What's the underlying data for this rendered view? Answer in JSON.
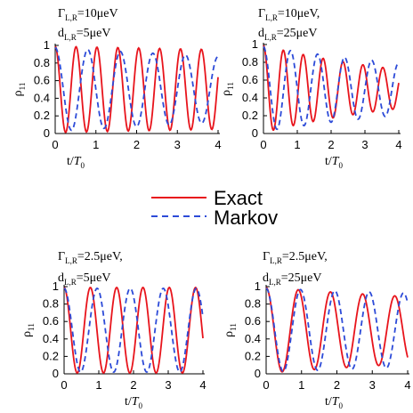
{
  "chart_data": [
    {
      "type": "line",
      "annotation": [
        "Γ",
        "L,R",
        "=10μeV",
        "d",
        "L,R",
        "=5μeV"
      ],
      "xlabel": "t/T",
      "xlabel_sub": "0",
      "ylabel": "ρ",
      "ylabel_sub": "11",
      "xlim": [
        0,
        4
      ],
      "ylim": [
        0,
        1
      ],
      "xticks": [
        "0",
        "1",
        "2",
        "3",
        "4"
      ],
      "yticks": [
        "0",
        "0.2",
        "0.4",
        "0.6",
        "0.8",
        "1"
      ],
      "series": [
        {
          "name": "Exact",
          "color": "#e8141c",
          "dash": "solid",
          "freq": 1.95,
          "decay": 0.02,
          "amp": 0.98
        },
        {
          "name": "Markov",
          "color": "#2d4bd8",
          "dash": "dashed",
          "freq": 1.25,
          "decay": 0.06,
          "amp": 0.95
        }
      ]
    },
    {
      "type": "line",
      "annotation": [
        "Γ",
        "L,R",
        "=10μeV,",
        "d",
        "L,R",
        "=25μeV"
      ],
      "xlabel": "t/T",
      "xlabel_sub": "0",
      "ylabel": "ρ",
      "ylabel_sub": "11",
      "xlim": [
        0,
        4
      ],
      "ylim": [
        0,
        1
      ],
      "xticks": [
        "0",
        "1",
        "2",
        "3",
        "4"
      ],
      "yticks": [
        "0",
        "0.2",
        "0.4",
        "0.6",
        "0.8",
        "1"
      ],
      "series": [
        {
          "name": "Exact",
          "color": "#e8141c",
          "dash": "solid",
          "freq": 1.7,
          "decay": 0.2,
          "amp": 0.98
        },
        {
          "name": "Markov",
          "color": "#2d4bd8",
          "dash": "dashed",
          "freq": 1.25,
          "decay": 0.12,
          "amp": 0.95
        }
      ]
    },
    {
      "type": "line",
      "annotation": [
        "Γ",
        "L,R",
        "=2.5μeV,",
        "d",
        "L,R",
        "=5μeV"
      ],
      "xlabel": "t/T",
      "xlabel_sub": "0",
      "ylabel": "ρ",
      "ylabel_sub": "11",
      "xlim": [
        0,
        4
      ],
      "ylim": [
        0,
        1
      ],
      "xticks": [
        "0",
        "1",
        "2",
        "3",
        "4"
      ],
      "yticks": [
        "0",
        "0.2",
        "0.4",
        "0.6",
        "0.8",
        "1"
      ],
      "series": [
        {
          "name": "Exact",
          "color": "#e8141c",
          "dash": "solid",
          "freq": 1.32,
          "decay": 0.0,
          "amp": 0.98
        },
        {
          "name": "Markov",
          "color": "#2d4bd8",
          "dash": "dashed",
          "freq": 1.05,
          "decay": 0.0,
          "amp": 0.96
        }
      ]
    },
    {
      "type": "line",
      "annotation": [
        "Γ",
        "L,R",
        "=2.5μeV,",
        "d",
        "L,R",
        "=25μeV"
      ],
      "xlabel": "t/T",
      "xlabel_sub": "0",
      "ylabel": "ρ",
      "ylabel_sub": "11",
      "xlim": [
        0,
        4
      ],
      "ylim": [
        0,
        1
      ],
      "xticks": [
        "0",
        "1",
        "2",
        "3",
        "4"
      ],
      "yticks": [
        "0",
        "0.2",
        "0.4",
        "0.6",
        "0.8",
        "1"
      ],
      "series": [
        {
          "name": "Exact",
          "color": "#e8141c",
          "dash": "solid",
          "freq": 1.1,
          "decay": 0.06,
          "amp": 0.98
        },
        {
          "name": "Markov",
          "color": "#2d4bd8",
          "dash": "dashed",
          "freq": 1.03,
          "decay": 0.03,
          "amp": 0.96
        }
      ]
    }
  ],
  "legend": [
    {
      "label": "Exact",
      "color": "#e8141c",
      "dash": "solid"
    },
    {
      "label": "Markov",
      "color": "#2d4bd8",
      "dash": "dashed"
    }
  ]
}
